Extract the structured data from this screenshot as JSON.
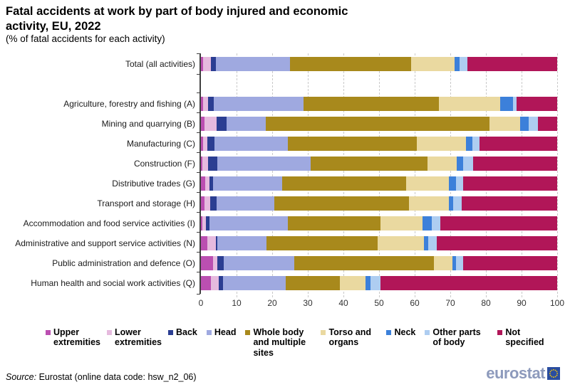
{
  "header": {
    "title_lines": [
      "Fatal accidents at work by part of body injured and economic",
      "activity, EU, 2022"
    ],
    "subtitle": "(% of fatal accidents for each activity)"
  },
  "chart_data": {
    "type": "bar",
    "variant": "horizontal-stacked",
    "title": "Fatal accidents at work by part of body injured and economic activity, EU, 2022",
    "subtitle": "(% of fatal accidents for each activity)",
    "xlabel": "",
    "ylabel": "",
    "x_axis": {
      "min": 0,
      "max": 100,
      "tick_step": 10,
      "ticks": [
        0,
        10,
        20,
        30,
        40,
        50,
        60,
        70,
        80,
        90,
        100
      ]
    },
    "grid": "vertical-dashed",
    "legend_position": "bottom",
    "categories": [
      "Total (all activities)",
      "Agriculture, forestry and fishing (A)",
      "Mining and quarrying (B)",
      "Manufacturing (C)",
      "Construction (F)",
      "Distributive trades (G)",
      "Transport and storage (H)",
      "Accommodation and food service activities (I)",
      "Administrative and support service activities (N)",
      "Public administration and defence (O)",
      "Human health and social work activities (Q)"
    ],
    "series": [
      {
        "name": "Upper extremities",
        "color": "#bb4fb1",
        "values": [
          0.6,
          0.5,
          0.9,
          0.6,
          0.4,
          1.1,
          0.9,
          0.4,
          1.7,
          3.3,
          2.7
        ]
      },
      {
        "name": "Lower extremities",
        "color": "#e6bade",
        "values": [
          2.2,
          1.5,
          3.5,
          1.2,
          1.5,
          1.3,
          1.7,
          0.9,
          2.4,
          1.3,
          2.2
        ]
      },
      {
        "name": "Back",
        "color": "#2b3e92",
        "values": [
          1.3,
          1.6,
          2.7,
          1.9,
          2.7,
          0.9,
          1.7,
          1.1,
          0.5,
          1.8,
          1.3
        ]
      },
      {
        "name": "Head",
        "color": "#9fa9e0",
        "values": [
          20.9,
          25.2,
          11.0,
          20.6,
          26.1,
          19.5,
          16.2,
          22.0,
          13.8,
          19.7,
          17.5
        ]
      },
      {
        "name": "Whole body and multiple sites",
        "color": "#a8891c",
        "values": [
          34.0,
          37.9,
          62.9,
          36.3,
          32.9,
          34.8,
          37.9,
          25.9,
          31.1,
          39.3,
          15.3
        ]
      },
      {
        "name": "Torso and organs",
        "color": "#ead9a0",
        "values": [
          12.2,
          17.2,
          8.5,
          13.7,
          8.1,
          12.0,
          11.2,
          11.9,
          13.1,
          5.1,
          7.2
        ]
      },
      {
        "name": "Neck",
        "color": "#3c80da",
        "values": [
          1.4,
          3.6,
          2.5,
          1.9,
          1.9,
          1.9,
          1.1,
          2.5,
          1.1,
          1.1,
          1.3
        ]
      },
      {
        "name": "Other parts of body",
        "color": "#aecdf1",
        "values": [
          2.1,
          1.1,
          2.5,
          2.0,
          2.8,
          2.1,
          2.5,
          2.5,
          2.5,
          2.0,
          2.8
        ]
      },
      {
        "name": "Not specified",
        "color": "#b11658",
        "values": [
          25.3,
          11.4,
          5.5,
          21.8,
          23.6,
          26.4,
          26.8,
          32.8,
          33.8,
          26.4,
          49.7
        ]
      }
    ]
  },
  "footer": {
    "source_label": "Source:",
    "source_text": " Eurostat (online data code: hsw_n2_06)",
    "logo_text": "eurostat",
    "logo_flag_color": "#2a4da0",
    "logo_star_color": "#ffcc00"
  }
}
